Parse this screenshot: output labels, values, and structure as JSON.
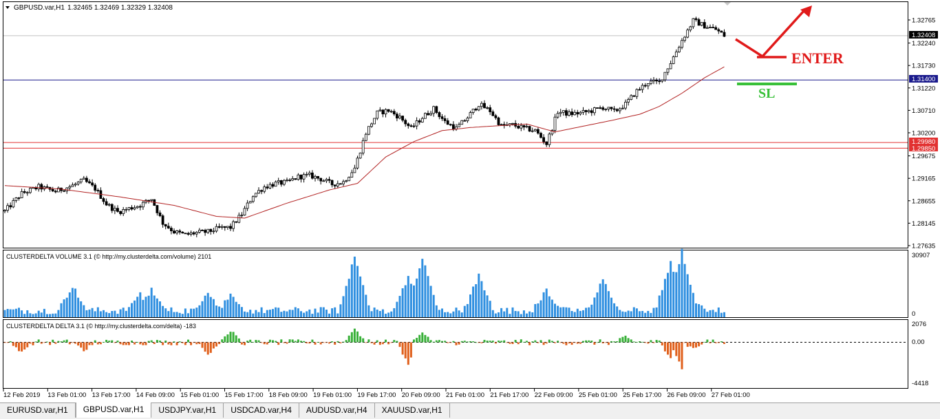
{
  "colors": {
    "bull": "#000000",
    "bear": "#000000",
    "ma": "#b22222",
    "volume": "#2f8fe0",
    "delta_pos": "#38b038",
    "delta_neg": "#e0601c",
    "support": "#e23131",
    "entry_line": "#1a1a8c",
    "annot_red": "#e01a1a",
    "annot_green": "#38c038"
  },
  "header": {
    "arrow_icon": "triangle-down",
    "symbol": "GBPUSD.var,H1",
    "ohlc": "1.32465 1.32469 1.32329 1.32408"
  },
  "price_axis": {
    "ticks": [
      "1.32765",
      "1.32240",
      "1.31730",
      "1.31220",
      "1.30710",
      "1.30200",
      "1.29675",
      "1.29165",
      "1.28655",
      "1.28145",
      "1.27635"
    ],
    "labels": [
      {
        "text": "1.32408",
        "bg": "#000000",
        "fg": "#ffffff"
      },
      {
        "text": "1.31400",
        "bg": "#1a1a8c",
        "fg": "#ffffff"
      },
      {
        "text": "1.29980",
        "bg": "#e23131",
        "fg": "#ffffff"
      },
      {
        "text": "1.29850",
        "bg": "#e23131",
        "fg": "#ffffff"
      }
    ]
  },
  "annotations": {
    "enter": "ENTER",
    "sl": "SL"
  },
  "volume_panel": {
    "title": "CLUSTERDELTA VOLUME 3.1 (© http://my.clusterdelta.com/volume) 2101",
    "max_label": "30907",
    "zero_label": "0"
  },
  "delta_panel": {
    "title": "CLUSTERDELTA DELTA 3.1 (© http://my.clusterdelta.com/delta) -183",
    "top_label": "2076",
    "mid_label": "0.00",
    "bottom_label": "-4418"
  },
  "time_axis": [
    "12 Feb 2019",
    "13 Feb 01:00",
    "13 Feb 17:00",
    "14 Feb 09:00",
    "15 Feb 01:00",
    "15 Feb 17:00",
    "18 Feb 09:00",
    "19 Feb 01:00",
    "19 Feb 17:00",
    "20 Feb 09:00",
    "21 Feb 01:00",
    "21 Feb 17:00",
    "22 Feb 09:00",
    "25 Feb 01:00",
    "25 Feb 17:00",
    "26 Feb 09:00",
    "27 Feb 01:00"
  ],
  "tabs": [
    {
      "label": "EURUSD.var,H1",
      "active": false
    },
    {
      "label": "GBPUSD.var,H1",
      "active": true
    },
    {
      "label": "USDJPY.var,H1",
      "active": false
    },
    {
      "label": "USDCAD.var,H4",
      "active": false
    },
    {
      "label": "AUDUSD.var,H4",
      "active": false
    },
    {
      "label": "XAUUSD.var,H1",
      "active": false
    }
  ],
  "chart_data": [
    {
      "type": "candlestick",
      "symbol": "GBPUSD.var,H1",
      "ylim": [
        1.2752,
        1.3305
      ],
      "levels": {
        "entry": 1.314,
        "support_1": 1.2998,
        "support_2": 1.2985
      },
      "price_path": [
        [
          0,
          1.2842
        ],
        [
          6,
          1.2882
        ],
        [
          12,
          1.2897
        ],
        [
          18,
          1.2887
        ],
        [
          24,
          1.29
        ],
        [
          28,
          1.2912
        ],
        [
          32,
          1.2893
        ],
        [
          36,
          1.2858
        ],
        [
          40,
          1.284
        ],
        [
          44,
          1.2848
        ],
        [
          48,
          1.2856
        ],
        [
          52,
          1.287
        ],
        [
          56,
          1.2815
        ],
        [
          60,
          1.2795
        ],
        [
          64,
          1.2788
        ],
        [
          68,
          1.2793
        ],
        [
          72,
          1.2795
        ],
        [
          76,
          1.2803
        ],
        [
          80,
          1.2805
        ],
        [
          84,
          1.2835
        ],
        [
          88,
          1.2878
        ],
        [
          92,
          1.2897
        ],
        [
          96,
          1.2905
        ],
        [
          100,
          1.2907
        ],
        [
          104,
          1.292
        ],
        [
          108,
          1.2923
        ],
        [
          112,
          1.2915
        ],
        [
          116,
          1.2903
        ],
        [
          120,
          1.2908
        ],
        [
          124,
          1.294
        ],
        [
          128,
          1.302
        ],
        [
          132,
          1.3065
        ],
        [
          136,
          1.3071
        ],
        [
          140,
          1.3055
        ],
        [
          144,
          1.303
        ],
        [
          148,
          1.3055
        ],
        [
          152,
          1.3075
        ],
        [
          156,
          1.3045
        ],
        [
          160,
          1.303
        ],
        [
          164,
          1.3055
        ],
        [
          168,
          1.3085
        ],
        [
          172,
          1.307
        ],
        [
          176,
          1.3035
        ],
        [
          180,
          1.3038
        ],
        [
          184,
          1.303
        ],
        [
          188,
          1.3025
        ],
        [
          192,
          1.2995
        ],
        [
          196,
          1.3068
        ],
        [
          200,
          1.3063
        ],
        [
          204,
          1.3065
        ],
        [
          208,
          1.307
        ],
        [
          212,
          1.3078
        ],
        [
          216,
          1.3068
        ],
        [
          220,
          1.3085
        ],
        [
          224,
          1.3115
        ],
        [
          228,
          1.3135
        ],
        [
          232,
          1.3135
        ],
        [
          236,
          1.318
        ],
        [
          240,
          1.323
        ],
        [
          244,
          1.3275
        ],
        [
          248,
          1.3263
        ],
        [
          252,
          1.3255
        ],
        [
          255,
          1.3241
        ]
      ],
      "ma_path": [
        [
          0,
          1.29
        ],
        [
          20,
          1.2892
        ],
        [
          40,
          1.2875
        ],
        [
          60,
          1.2855
        ],
        [
          75,
          1.283
        ],
        [
          85,
          1.2826
        ],
        [
          100,
          1.286
        ],
        [
          115,
          1.289
        ],
        [
          125,
          1.2905
        ],
        [
          135,
          1.2965
        ],
        [
          145,
          1.3
        ],
        [
          155,
          1.3025
        ],
        [
          165,
          1.3032
        ],
        [
          175,
          1.3036
        ],
        [
          185,
          1.304
        ],
        [
          195,
          1.3022
        ],
        [
          205,
          1.3035
        ],
        [
          215,
          1.3048
        ],
        [
          225,
          1.3062
        ],
        [
          232,
          1.308
        ],
        [
          240,
          1.311
        ],
        [
          248,
          1.3145
        ],
        [
          255,
          1.317
        ]
      ],
      "volume": {
        "ylim": [
          0,
          30907
        ],
        "peaks": [
          [
            24,
            14000
          ],
          [
            48,
            10000
          ],
          [
            52,
            12000
          ],
          [
            72,
            11000
          ],
          [
            80,
            9000
          ],
          [
            124,
            28000
          ],
          [
            143,
            18000
          ],
          [
            148,
            28000
          ],
          [
            168,
            19000
          ],
          [
            192,
            12000
          ],
          [
            212,
            17000
          ],
          [
            236,
            25000
          ],
          [
            240,
            31000
          ],
          [
            244,
            8000
          ]
        ]
      },
      "delta": {
        "ylim": [
          -4418,
          2076
        ],
        "spikes": [
          [
            6,
            -1000
          ],
          [
            28,
            -800
          ],
          [
            72,
            -1200
          ],
          [
            80,
            1200
          ],
          [
            124,
            1400
          ],
          [
            143,
            -2200
          ],
          [
            148,
            900
          ],
          [
            220,
            600
          ],
          [
            236,
            -1500
          ],
          [
            240,
            -2700
          ],
          [
            244,
            -600
          ]
        ]
      }
    }
  ]
}
